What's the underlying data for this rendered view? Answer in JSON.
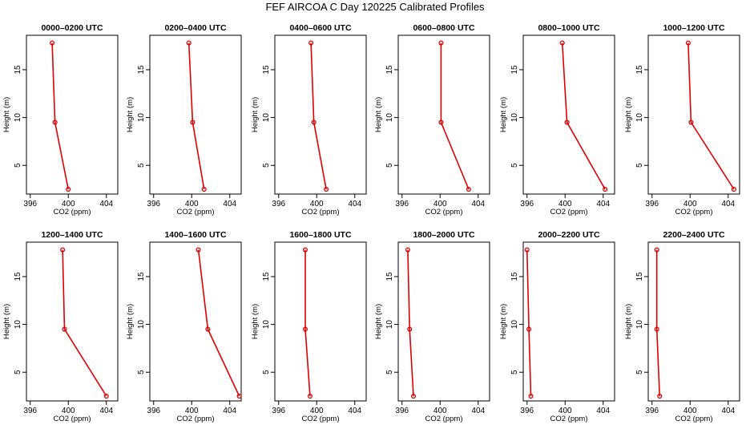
{
  "title": "FEF AIRCOA C  Day 120225  Calibrated Profiles",
  "colors": {
    "series": "#dd0000",
    "axis": "#000000",
    "background": "#ffffff"
  },
  "chart_data": [
    {
      "type": "line",
      "title": "0000–0200 UTC",
      "xlabel": "CO2 (ppm)",
      "ylabel": "Height (m)",
      "xlim": [
        395.6,
        405.2
      ],
      "ylim": [
        2,
        18.6
      ],
      "xticks": [
        396,
        400,
        404
      ],
      "yticks": [
        5,
        10,
        15
      ],
      "x": [
        398.3,
        398.6,
        400.0
      ],
      "y": [
        17.8,
        9.5,
        2.5
      ]
    },
    {
      "type": "line",
      "title": "0200–0400 UTC",
      "xlabel": "CO2 (ppm)",
      "ylabel": "Height (m)",
      "xlim": [
        395.6,
        405.2
      ],
      "ylim": [
        2,
        18.6
      ],
      "xticks": [
        396,
        400,
        404
      ],
      "yticks": [
        5,
        10,
        15
      ],
      "x": [
        399.7,
        400.1,
        401.3
      ],
      "y": [
        17.8,
        9.5,
        2.5
      ]
    },
    {
      "type": "line",
      "title": "0400–0600 UTC",
      "xlabel": "CO2 (ppm)",
      "ylabel": "Height (m)",
      "xlim": [
        395.6,
        405.2
      ],
      "ylim": [
        2,
        18.6
      ],
      "xticks": [
        396,
        400,
        404
      ],
      "yticks": [
        5,
        10,
        15
      ],
      "x": [
        399.4,
        399.7,
        401.0
      ],
      "y": [
        17.8,
        9.5,
        2.5
      ]
    },
    {
      "type": "line",
      "title": "0600–0800 UTC",
      "xlabel": "CO2 (ppm)",
      "ylabel": "Height (m)",
      "xlim": [
        395.6,
        405.2
      ],
      "ylim": [
        2,
        18.6
      ],
      "xticks": [
        396,
        400,
        404
      ],
      "yticks": [
        5,
        10,
        15
      ],
      "x": [
        400.1,
        400.1,
        403.0
      ],
      "y": [
        17.8,
        9.5,
        2.5
      ]
    },
    {
      "type": "line",
      "title": "0800–1000 UTC",
      "xlabel": "CO2 (ppm)",
      "ylabel": "Height (m)",
      "xlim": [
        395.6,
        405.2
      ],
      "ylim": [
        2,
        18.6
      ],
      "xticks": [
        396,
        400,
        404
      ],
      "yticks": [
        5,
        10,
        15
      ],
      "x": [
        399.7,
        400.2,
        404.2
      ],
      "y": [
        17.8,
        9.5,
        2.5
      ]
    },
    {
      "type": "line",
      "title": "1000–1200 UTC",
      "xlabel": "CO2 (ppm)",
      "ylabel": "Height (m)",
      "xlim": [
        395.6,
        405.2
      ],
      "ylim": [
        2,
        18.6
      ],
      "xticks": [
        396,
        400,
        404
      ],
      "yticks": [
        5,
        10,
        15
      ],
      "x": [
        399.8,
        400.1,
        404.6
      ],
      "y": [
        17.8,
        9.5,
        2.5
      ]
    },
    {
      "type": "line",
      "title": "1200–1400 UTC",
      "xlabel": "CO2 (ppm)",
      "ylabel": "Height (m)",
      "xlim": [
        395.6,
        405.2
      ],
      "ylim": [
        2,
        18.6
      ],
      "xticks": [
        396,
        400,
        404
      ],
      "yticks": [
        5,
        10,
        15
      ],
      "x": [
        399.4,
        399.6,
        404.0
      ],
      "y": [
        17.8,
        9.5,
        2.5
      ]
    },
    {
      "type": "line",
      "title": "1400–1600 UTC",
      "xlabel": "CO2 (ppm)",
      "ylabel": "Height (m)",
      "xlim": [
        395.6,
        405.2
      ],
      "ylim": [
        2,
        18.6
      ],
      "xticks": [
        396,
        400,
        404
      ],
      "yticks": [
        5,
        10,
        15
      ],
      "x": [
        400.7,
        401.7,
        405.0
      ],
      "y": [
        17.8,
        9.5,
        2.5
      ]
    },
    {
      "type": "line",
      "title": "1600–1800 UTC",
      "xlabel": "CO2 (ppm)",
      "ylabel": "Height (m)",
      "xlim": [
        395.6,
        405.2
      ],
      "ylim": [
        2,
        18.6
      ],
      "xticks": [
        396,
        400,
        404
      ],
      "yticks": [
        5,
        10,
        15
      ],
      "x": [
        398.8,
        398.8,
        399.3
      ],
      "y": [
        17.8,
        9.5,
        2.5
      ]
    },
    {
      "type": "line",
      "title": "1800–2000 UTC",
      "xlabel": "CO2 (ppm)",
      "ylabel": "Height (m)",
      "xlim": [
        395.6,
        405.2
      ],
      "ylim": [
        2,
        18.6
      ],
      "xticks": [
        396,
        400,
        404
      ],
      "yticks": [
        5,
        10,
        15
      ],
      "x": [
        396.6,
        396.8,
        397.2
      ],
      "y": [
        17.8,
        9.5,
        2.5
      ]
    },
    {
      "type": "line",
      "title": "2000–2200 UTC",
      "xlabel": "CO2 (ppm)",
      "ylabel": "Height (m)",
      "xlim": [
        395.6,
        405.2
      ],
      "ylim": [
        2,
        18.6
      ],
      "xticks": [
        396,
        400,
        404
      ],
      "yticks": [
        5,
        10,
        15
      ],
      "x": [
        396.0,
        396.2,
        396.4
      ],
      "y": [
        17.8,
        9.5,
        2.5
      ]
    },
    {
      "type": "line",
      "title": "2200–2400 UTC",
      "xlabel": "CO2 (ppm)",
      "ylabel": "Height (m)",
      "xlim": [
        395.6,
        405.2
      ],
      "ylim": [
        2,
        18.6
      ],
      "xticks": [
        396,
        400,
        404
      ],
      "yticks": [
        5,
        10,
        15
      ],
      "x": [
        396.5,
        396.5,
        396.8
      ],
      "y": [
        17.8,
        9.5,
        2.5
      ]
    }
  ]
}
